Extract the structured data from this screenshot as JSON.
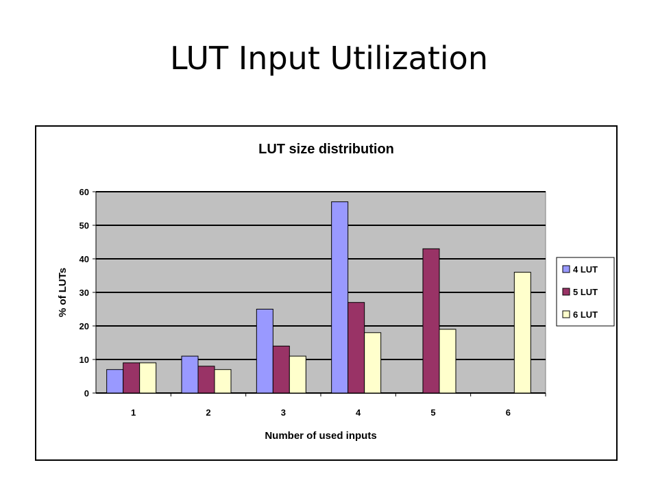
{
  "slide": {
    "title": "LUT Input Utilization"
  },
  "chart_data": {
    "type": "bar",
    "title": "LUT size distribution",
    "xlabel": "Number of used inputs",
    "ylabel": "% of LUTs",
    "categories": [
      "1",
      "2",
      "3",
      "4",
      "5",
      "6"
    ],
    "ylim": [
      0,
      60
    ],
    "yticks": [
      0,
      10,
      20,
      30,
      40,
      50,
      60
    ],
    "grid": true,
    "legend": "right",
    "series": [
      {
        "name": "4 LUT",
        "color": "#9999ff",
        "values": [
          7,
          11,
          25,
          57,
          null,
          null
        ]
      },
      {
        "name": "5 LUT",
        "color": "#993366",
        "values": [
          9,
          8,
          14,
          27,
          43,
          null
        ]
      },
      {
        "name": "6 LUT",
        "color": "#ffffcc",
        "values": [
          9,
          7,
          11,
          18,
          19,
          36
        ]
      }
    ],
    "plot_background": "#c0c0c0"
  }
}
